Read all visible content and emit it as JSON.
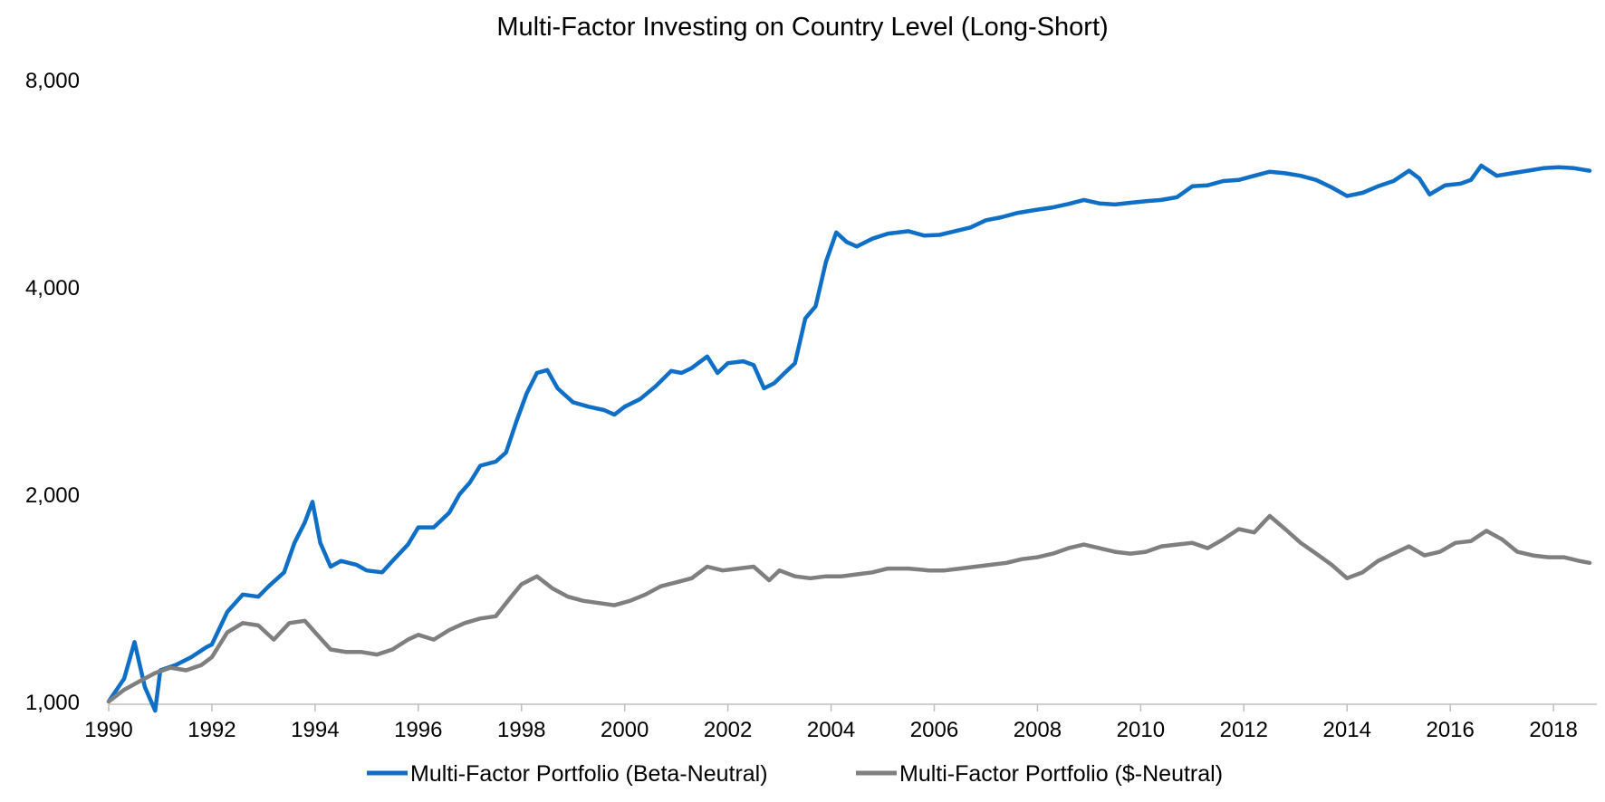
{
  "chart_data": {
    "type": "line",
    "title": "Multi-Factor Investing on Country Level (Long-Short)",
    "xlabel": "",
    "ylabel": "",
    "y_scale": "log",
    "ylim": [
      1000,
      8000
    ],
    "y_ticks": [
      1000,
      2000,
      4000,
      8000
    ],
    "y_tick_labels": [
      "1,000",
      "2,000",
      "4,000",
      "8,000"
    ],
    "xlim": [
      1990,
      2018.7
    ],
    "x_ticks": [
      1990,
      1992,
      1994,
      1996,
      1998,
      2000,
      2002,
      2004,
      2006,
      2008,
      2010,
      2012,
      2014,
      2016,
      2018
    ],
    "x_tick_labels": [
      "1990",
      "1992",
      "1994",
      "1996",
      "1998",
      "2000",
      "2002",
      "2004",
      "2006",
      "2008",
      "2010",
      "2012",
      "2014",
      "2016",
      "2018"
    ],
    "grid": false,
    "legend_position": "bottom",
    "series": [
      {
        "name": "Multi-Factor Portfolio (Beta-Neutral)",
        "color": "#0F6FC6",
        "points": [
          [
            1990.0,
            1000
          ],
          [
            1990.3,
            1080
          ],
          [
            1990.5,
            1220
          ],
          [
            1990.7,
            1050
          ],
          [
            1990.9,
            970
          ],
          [
            1991.0,
            1110
          ],
          [
            1991.3,
            1130
          ],
          [
            1991.6,
            1160
          ],
          [
            1991.9,
            1200
          ],
          [
            1992.0,
            1210
          ],
          [
            1992.3,
            1350
          ],
          [
            1992.6,
            1430
          ],
          [
            1992.9,
            1420
          ],
          [
            1993.1,
            1470
          ],
          [
            1993.4,
            1540
          ],
          [
            1993.6,
            1700
          ],
          [
            1993.8,
            1820
          ],
          [
            1993.95,
            1950
          ],
          [
            1994.1,
            1700
          ],
          [
            1994.3,
            1570
          ],
          [
            1994.5,
            1600
          ],
          [
            1994.8,
            1580
          ],
          [
            1995.0,
            1550
          ],
          [
            1995.3,
            1540
          ],
          [
            1995.5,
            1600
          ],
          [
            1995.8,
            1690
          ],
          [
            1996.0,
            1790
          ],
          [
            1996.3,
            1790
          ],
          [
            1996.6,
            1880
          ],
          [
            1996.8,
            2000
          ],
          [
            1997.0,
            2080
          ],
          [
            1997.2,
            2200
          ],
          [
            1997.5,
            2230
          ],
          [
            1997.7,
            2300
          ],
          [
            1997.9,
            2550
          ],
          [
            1998.1,
            2800
          ],
          [
            1998.3,
            3000
          ],
          [
            1998.5,
            3030
          ],
          [
            1998.7,
            2850
          ],
          [
            1999.0,
            2720
          ],
          [
            1999.3,
            2680
          ],
          [
            1999.6,
            2650
          ],
          [
            1999.8,
            2610
          ],
          [
            2000.0,
            2680
          ],
          [
            2000.3,
            2750
          ],
          [
            2000.6,
            2870
          ],
          [
            2000.9,
            3020
          ],
          [
            2001.1,
            3000
          ],
          [
            2001.3,
            3050
          ],
          [
            2001.6,
            3170
          ],
          [
            2001.8,
            3000
          ],
          [
            2002.0,
            3100
          ],
          [
            2002.3,
            3120
          ],
          [
            2002.5,
            3080
          ],
          [
            2002.7,
            2850
          ],
          [
            2002.9,
            2900
          ],
          [
            2003.1,
            3000
          ],
          [
            2003.3,
            3100
          ],
          [
            2003.5,
            3600
          ],
          [
            2003.7,
            3750
          ],
          [
            2003.9,
            4350
          ],
          [
            2004.1,
            4800
          ],
          [
            2004.3,
            4650
          ],
          [
            2004.5,
            4580
          ],
          [
            2004.8,
            4700
          ],
          [
            2005.1,
            4780
          ],
          [
            2005.5,
            4820
          ],
          [
            2005.8,
            4750
          ],
          [
            2006.1,
            4760
          ],
          [
            2006.4,
            4820
          ],
          [
            2006.7,
            4880
          ],
          [
            2007.0,
            5000
          ],
          [
            2007.3,
            5050
          ],
          [
            2007.6,
            5120
          ],
          [
            2008.0,
            5180
          ],
          [
            2008.3,
            5220
          ],
          [
            2008.6,
            5280
          ],
          [
            2008.9,
            5350
          ],
          [
            2009.2,
            5290
          ],
          [
            2009.5,
            5270
          ],
          [
            2009.8,
            5300
          ],
          [
            2010.1,
            5330
          ],
          [
            2010.4,
            5350
          ],
          [
            2010.7,
            5400
          ],
          [
            2011.0,
            5600
          ],
          [
            2011.3,
            5620
          ],
          [
            2011.6,
            5700
          ],
          [
            2011.9,
            5720
          ],
          [
            2012.2,
            5800
          ],
          [
            2012.5,
            5880
          ],
          [
            2012.8,
            5850
          ],
          [
            2013.1,
            5800
          ],
          [
            2013.4,
            5720
          ],
          [
            2013.7,
            5580
          ],
          [
            2014.0,
            5420
          ],
          [
            2014.3,
            5480
          ],
          [
            2014.6,
            5600
          ],
          [
            2014.9,
            5700
          ],
          [
            2015.2,
            5900
          ],
          [
            2015.4,
            5750
          ],
          [
            2015.6,
            5450
          ],
          [
            2015.9,
            5620
          ],
          [
            2016.2,
            5650
          ],
          [
            2016.4,
            5720
          ],
          [
            2016.6,
            6000
          ],
          [
            2016.9,
            5800
          ],
          [
            2017.2,
            5850
          ],
          [
            2017.5,
            5900
          ],
          [
            2017.8,
            5950
          ],
          [
            2018.1,
            5970
          ],
          [
            2018.4,
            5950
          ],
          [
            2018.7,
            5900
          ]
        ]
      },
      {
        "name": "Multi-Factor Portfolio ($-Neutral)",
        "color": "#7F7F7F",
        "points": [
          [
            1990.0,
            1000
          ],
          [
            1990.3,
            1040
          ],
          [
            1990.6,
            1070
          ],
          [
            1990.9,
            1100
          ],
          [
            1991.2,
            1120
          ],
          [
            1991.5,
            1110
          ],
          [
            1991.8,
            1130
          ],
          [
            1992.0,
            1160
          ],
          [
            1992.3,
            1260
          ],
          [
            1992.6,
            1300
          ],
          [
            1992.9,
            1290
          ],
          [
            1993.2,
            1230
          ],
          [
            1993.5,
            1300
          ],
          [
            1993.8,
            1310
          ],
          [
            1994.0,
            1260
          ],
          [
            1994.3,
            1190
          ],
          [
            1994.6,
            1180
          ],
          [
            1994.9,
            1180
          ],
          [
            1995.2,
            1170
          ],
          [
            1995.5,
            1190
          ],
          [
            1995.8,
            1230
          ],
          [
            1996.0,
            1250
          ],
          [
            1996.3,
            1230
          ],
          [
            1996.6,
            1270
          ],
          [
            1996.9,
            1300
          ],
          [
            1997.2,
            1320
          ],
          [
            1997.5,
            1330
          ],
          [
            1997.8,
            1420
          ],
          [
            1998.0,
            1480
          ],
          [
            1998.3,
            1520
          ],
          [
            1998.6,
            1460
          ],
          [
            1998.9,
            1420
          ],
          [
            1999.2,
            1400
          ],
          [
            1999.5,
            1390
          ],
          [
            1999.8,
            1380
          ],
          [
            2000.1,
            1400
          ],
          [
            2000.4,
            1430
          ],
          [
            2000.7,
            1470
          ],
          [
            2001.0,
            1490
          ],
          [
            2001.3,
            1510
          ],
          [
            2001.6,
            1570
          ],
          [
            2001.9,
            1550
          ],
          [
            2002.2,
            1560
          ],
          [
            2002.5,
            1570
          ],
          [
            2002.8,
            1500
          ],
          [
            2003.0,
            1550
          ],
          [
            2003.3,
            1520
          ],
          [
            2003.6,
            1510
          ],
          [
            2003.9,
            1520
          ],
          [
            2004.2,
            1520
          ],
          [
            2004.5,
            1530
          ],
          [
            2004.8,
            1540
          ],
          [
            2005.1,
            1560
          ],
          [
            2005.5,
            1560
          ],
          [
            2005.9,
            1550
          ],
          [
            2006.2,
            1550
          ],
          [
            2006.5,
            1560
          ],
          [
            2006.8,
            1570
          ],
          [
            2007.1,
            1580
          ],
          [
            2007.4,
            1590
          ],
          [
            2007.7,
            1610
          ],
          [
            2008.0,
            1620
          ],
          [
            2008.3,
            1640
          ],
          [
            2008.6,
            1670
          ],
          [
            2008.9,
            1690
          ],
          [
            2009.2,
            1670
          ],
          [
            2009.5,
            1650
          ],
          [
            2009.8,
            1640
          ],
          [
            2010.1,
            1650
          ],
          [
            2010.4,
            1680
          ],
          [
            2010.7,
            1690
          ],
          [
            2011.0,
            1700
          ],
          [
            2011.3,
            1670
          ],
          [
            2011.6,
            1720
          ],
          [
            2011.9,
            1780
          ],
          [
            2012.2,
            1760
          ],
          [
            2012.5,
            1860
          ],
          [
            2012.8,
            1780
          ],
          [
            2013.1,
            1700
          ],
          [
            2013.4,
            1640
          ],
          [
            2013.7,
            1580
          ],
          [
            2014.0,
            1510
          ],
          [
            2014.3,
            1540
          ],
          [
            2014.6,
            1600
          ],
          [
            2014.9,
            1640
          ],
          [
            2015.2,
            1680
          ],
          [
            2015.5,
            1630
          ],
          [
            2015.8,
            1650
          ],
          [
            2016.1,
            1700
          ],
          [
            2016.4,
            1710
          ],
          [
            2016.7,
            1770
          ],
          [
            2017.0,
            1720
          ],
          [
            2017.3,
            1650
          ],
          [
            2017.6,
            1630
          ],
          [
            2017.9,
            1620
          ],
          [
            2018.2,
            1620
          ],
          [
            2018.5,
            1600
          ],
          [
            2018.7,
            1590
          ]
        ]
      }
    ]
  }
}
